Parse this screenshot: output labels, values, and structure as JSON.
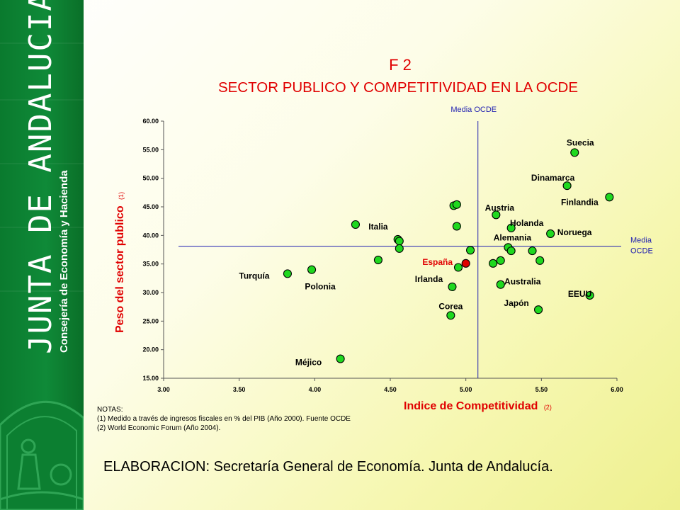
{
  "branding": {
    "name": "JUNTA DE ANDALUCIA",
    "department": "Consejería de Economía y Hacienda"
  },
  "colors": {
    "accent": "#e00000",
    "reference_line": "#1f1fb0",
    "point_fill": "#1fd81f",
    "highlight_point": "#e00000",
    "sidebar": "#0f8a38"
  },
  "chart_data": {
    "type": "scatter",
    "title": "F 2",
    "subtitle": "SECTOR PUBLICO Y COMPETITIVIDAD EN LA OCDE",
    "xlabel": "Indice de Competitividad",
    "xlabel_note": "(2)",
    "ylabel": "Peso del sector publico",
    "ylabel_note": "(1)",
    "xlim": [
      3.0,
      6.0
    ],
    "ylim": [
      15.0,
      60.0
    ],
    "xticks": [
      "3.00",
      "3.50",
      "4.00",
      "4.50",
      "5.00",
      "5.50",
      "6.00"
    ],
    "yticks": [
      "15.00",
      "20.00",
      "25.00",
      "30.00",
      "35.00",
      "40.00",
      "45.00",
      "50.00",
      "55.00",
      "60.00"
    ],
    "reference_lines": {
      "vertical": {
        "x": 5.08,
        "label": "Media OCDE"
      },
      "horizontal": {
        "y": 38.1,
        "label_lines": [
          "Media",
          "OCDE"
        ]
      }
    },
    "points": [
      {
        "label": "Suecia",
        "x": 5.72,
        "y": 54.5
      },
      {
        "label": "Dinamarca",
        "x": 5.67,
        "y": 48.7
      },
      {
        "label": "Finlandia",
        "x": 5.95,
        "y": 46.7
      },
      {
        "label": "Austria",
        "x": 5.2,
        "y": 43.6
      },
      {
        "label": "Holanda",
        "x": 5.3,
        "y": 41.3
      },
      {
        "label": "Noruega",
        "x": 5.56,
        "y": 40.3
      },
      {
        "label": "Alemania",
        "x": 5.28,
        "y": 37.9
      },
      {
        "label": "Italia",
        "x": 4.27,
        "y": 41.9
      },
      {
        "label": "España",
        "x": 5.0,
        "y": 35.1,
        "highlight": true
      },
      {
        "label": "Turquía",
        "x": 3.82,
        "y": 33.3
      },
      {
        "label": "Polonia",
        "x": 3.98,
        "y": 34.0
      },
      {
        "label": "Irlanda",
        "x": 4.91,
        "y": 31.0
      },
      {
        "label": "Australia",
        "x": 5.23,
        "y": 31.4
      },
      {
        "label": "Corea",
        "x": 4.9,
        "y": 26.0
      },
      {
        "label": "Japón",
        "x": 5.48,
        "y": 27.0
      },
      {
        "label": "EEUU",
        "x": 5.82,
        "y": 29.5
      },
      {
        "label": "Méjico",
        "x": 4.17,
        "y": 18.4
      },
      {
        "label": "",
        "x": 4.92,
        "y": 45.2
      },
      {
        "label": "",
        "x": 4.94,
        "y": 45.4
      },
      {
        "label": "",
        "x": 4.94,
        "y": 41.6
      },
      {
        "label": "",
        "x": 4.55,
        "y": 39.3
      },
      {
        "label": "",
        "x": 4.56,
        "y": 39.0
      },
      {
        "label": "",
        "x": 4.56,
        "y": 37.7
      },
      {
        "label": "",
        "x": 4.42,
        "y": 35.7
      },
      {
        "label": "",
        "x": 5.03,
        "y": 37.4
      },
      {
        "label": "",
        "x": 4.95,
        "y": 34.4
      },
      {
        "label": "",
        "x": 5.18,
        "y": 35.1
      },
      {
        "label": "",
        "x": 5.23,
        "y": 35.6
      },
      {
        "label": "",
        "x": 5.3,
        "y": 37.3
      },
      {
        "label": "",
        "x": 5.44,
        "y": 37.3
      },
      {
        "label": "",
        "x": 5.49,
        "y": 35.6
      }
    ]
  },
  "notes": {
    "heading": "NOTAS:",
    "items": [
      "(1) Medido a través de ingresos fiscales en % del PIB (Año 2000). Fuente OCDE",
      "(2) World Economic Forum (Año 2004)."
    ]
  },
  "footer": {
    "credit": "ELABORACION: Secretaría General de Economía. Junta de Andalucía."
  }
}
